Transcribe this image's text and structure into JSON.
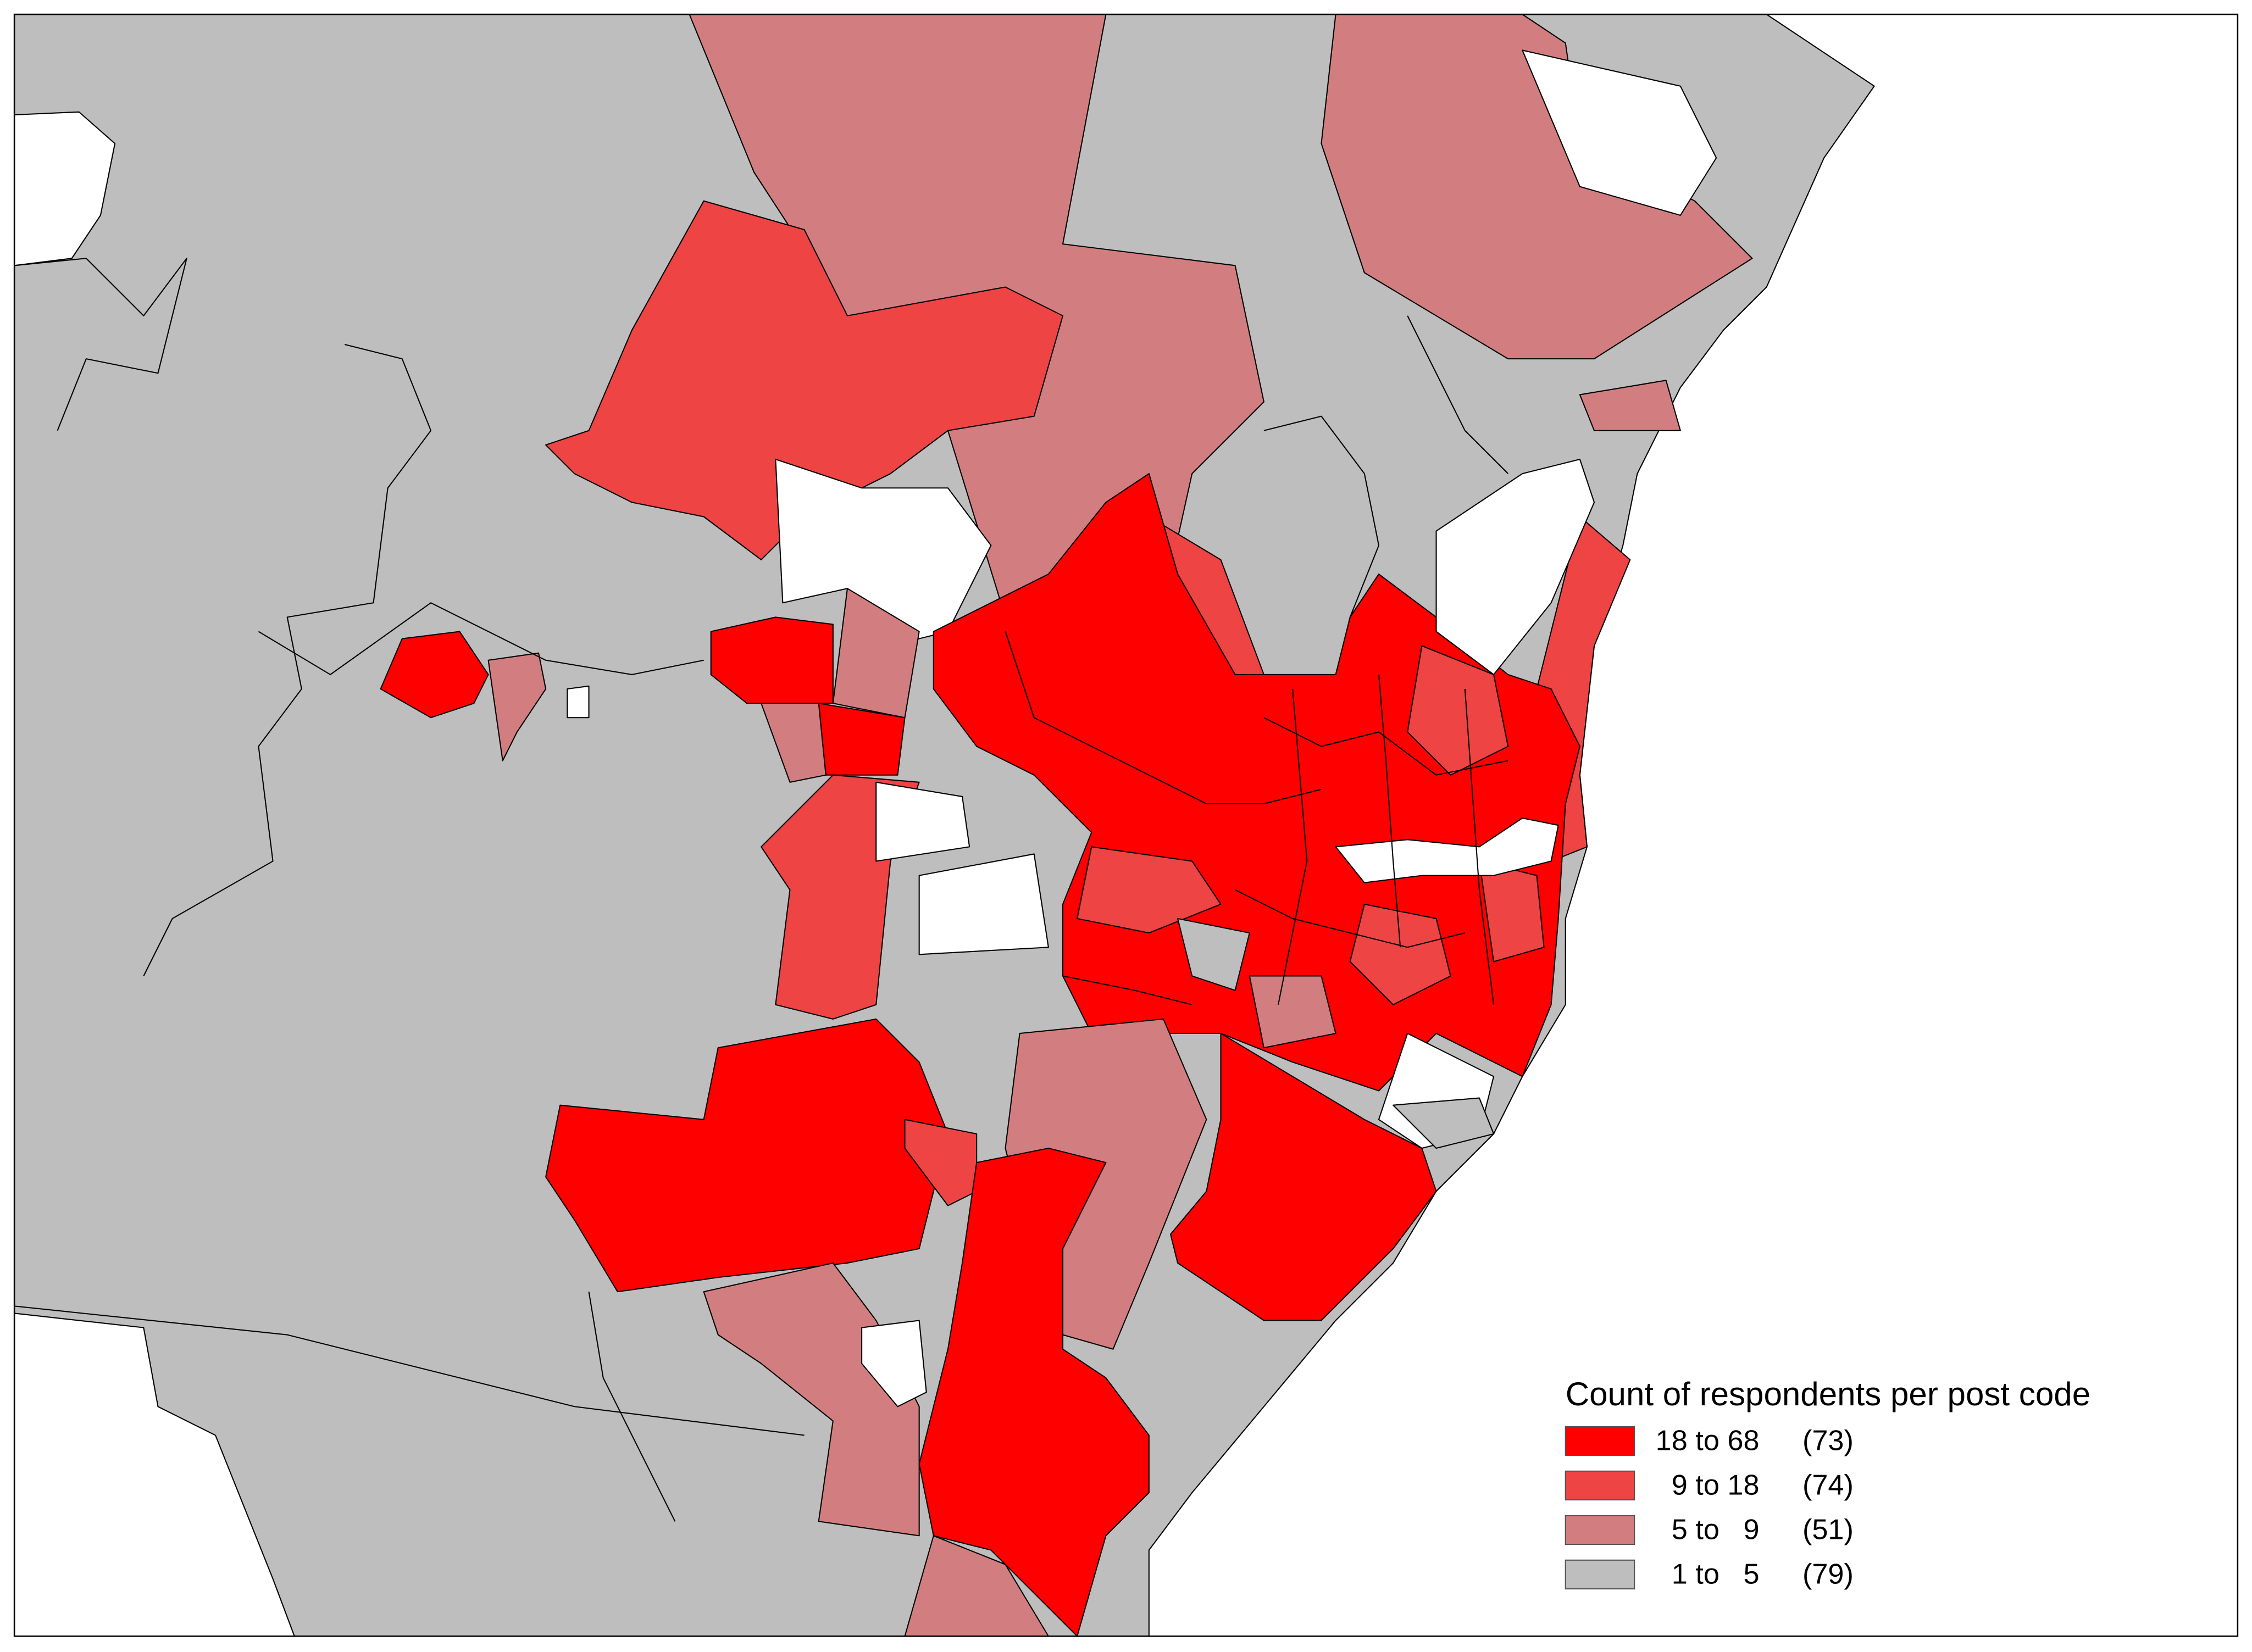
{
  "legend": {
    "title": "Count of respondents per post code",
    "classes": [
      {
        "range": "18 to 68",
        "count": "(73)",
        "color": "#ff0000"
      },
      {
        "range": "9 to 18",
        "count": "(74)",
        "color": "#ee4444"
      },
      {
        "range": "5 to   9",
        "count": "(51)",
        "color": "#d27e80"
      },
      {
        "range": "1 to   5",
        "count": "(79)",
        "color": "#bebebe"
      }
    ]
  }
}
